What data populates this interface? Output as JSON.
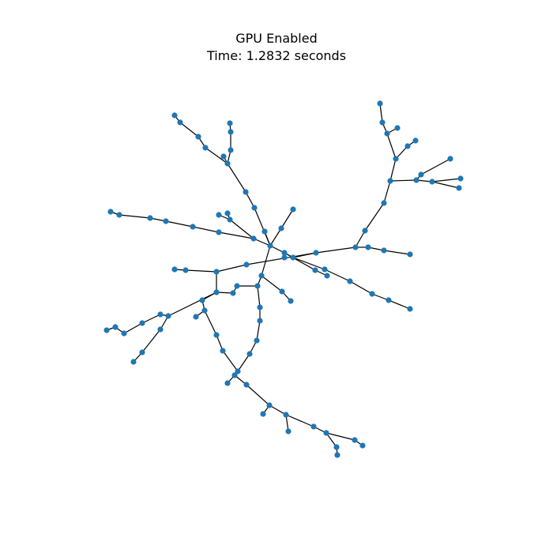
{
  "title": "GPU Enabled",
  "subtitle": "Time: 1.2832 seconds",
  "colors": {
    "node": "#1f77b4",
    "edge": "#000000",
    "background": "#ffffff"
  }
}
